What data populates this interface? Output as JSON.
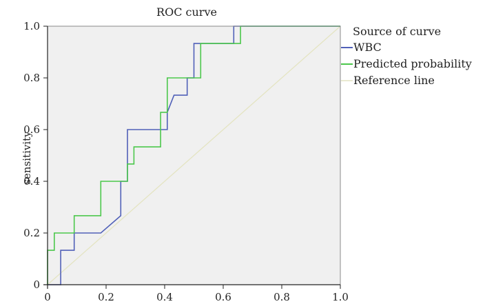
{
  "chart_data": {
    "type": "line",
    "title": "ROC curve",
    "xlabel": "",
    "ylabel": "sensitivity",
    "xlim": [
      0,
      1
    ],
    "ylim": [
      0,
      1
    ],
    "xticks": [
      "0",
      "0.2",
      "0.4",
      "0.6",
      "0.8",
      "1.0"
    ],
    "yticks": [
      "0",
      "0.2",
      "0.4",
      "0.6",
      "0.8",
      "1.0"
    ],
    "grid": false,
    "plot_background": "#f0f0f0",
    "legend": {
      "title": "Source of curve",
      "position": "right"
    },
    "series": [
      {
        "name": "WBC",
        "color": "#5060b8",
        "step": true,
        "points": [
          [
            0.0,
            0.0
          ],
          [
            0.045,
            0.0
          ],
          [
            0.045,
            0.133
          ],
          [
            0.091,
            0.133
          ],
          [
            0.091,
            0.2
          ],
          [
            0.182,
            0.2
          ],
          [
            0.25,
            0.267
          ],
          [
            0.25,
            0.4
          ],
          [
            0.273,
            0.4
          ],
          [
            0.273,
            0.6
          ],
          [
            0.409,
            0.6
          ],
          [
            0.409,
            0.667
          ],
          [
            0.432,
            0.733
          ],
          [
            0.477,
            0.733
          ],
          [
            0.477,
            0.8
          ],
          [
            0.5,
            0.8
          ],
          [
            0.5,
            0.933
          ],
          [
            0.636,
            0.933
          ],
          [
            0.636,
            1.0
          ],
          [
            1.0,
            1.0
          ]
        ]
      },
      {
        "name": "Predicted probability",
        "color": "#4bc74b",
        "step": true,
        "points": [
          [
            0.0,
            0.0
          ],
          [
            0.0,
            0.133
          ],
          [
            0.023,
            0.133
          ],
          [
            0.023,
            0.2
          ],
          [
            0.091,
            0.2
          ],
          [
            0.091,
            0.267
          ],
          [
            0.182,
            0.267
          ],
          [
            0.182,
            0.4
          ],
          [
            0.273,
            0.4
          ],
          [
            0.273,
            0.467
          ],
          [
            0.295,
            0.467
          ],
          [
            0.295,
            0.533
          ],
          [
            0.386,
            0.533
          ],
          [
            0.386,
            0.667
          ],
          [
            0.409,
            0.667
          ],
          [
            0.409,
            0.8
          ],
          [
            0.523,
            0.8
          ],
          [
            0.523,
            0.933
          ],
          [
            0.659,
            0.933
          ],
          [
            0.659,
            1.0
          ],
          [
            1.0,
            1.0
          ]
        ]
      },
      {
        "name": "Reference line",
        "color": "#e4e4c2",
        "step": false,
        "points": [
          [
            0,
            0
          ],
          [
            1,
            1
          ]
        ]
      }
    ]
  }
}
